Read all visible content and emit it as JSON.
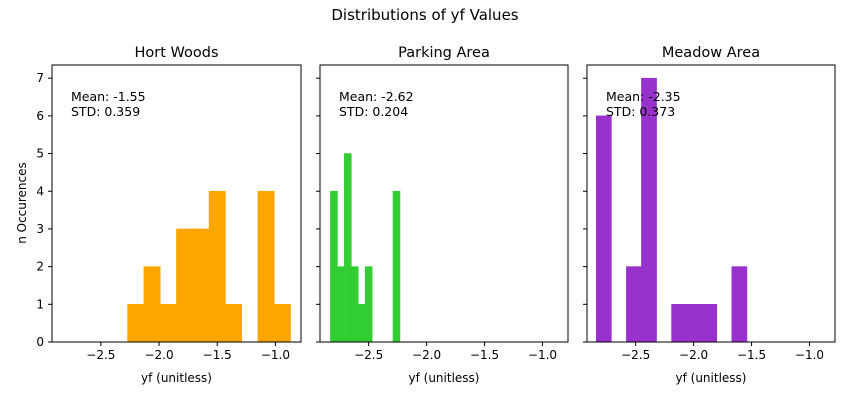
{
  "figure": {
    "title": "Distributions of yf Values",
    "ylabel": "n Occurences"
  },
  "chart_data": [
    {
      "type": "bar",
      "title": "Hort Woods",
      "xlabel": "yf (unitless)",
      "xlim": [
        -2.92,
        -0.78
      ],
      "ylim": [
        0,
        7.35
      ],
      "xticks": [
        -2.5,
        -2.0,
        -1.5,
        -1.0
      ],
      "xtick_labels": [
        "−2.5",
        "−2.0",
        "−1.5",
        "−1.0"
      ],
      "yticks": [
        0,
        1,
        2,
        3,
        4,
        5,
        6,
        7
      ],
      "ytick_labels": [
        "0",
        "1",
        "2",
        "3",
        "4",
        "5",
        "6",
        "7"
      ],
      "color": "#ffa500",
      "annotation": {
        "mean_text": "Mean: -1.55",
        "std_text": "STD: 0.359"
      },
      "bins": [
        {
          "x0": -2.27,
          "x1": -2.13,
          "count": 1
        },
        {
          "x0": -2.13,
          "x1": -1.99,
          "count": 2
        },
        {
          "x0": -1.99,
          "x1": -1.85,
          "count": 1
        },
        {
          "x0": -1.85,
          "x1": -1.71,
          "count": 3
        },
        {
          "x0": -1.71,
          "x1": -1.57,
          "count": 3
        },
        {
          "x0": -1.57,
          "x1": -1.43,
          "count": 4
        },
        {
          "x0": -1.43,
          "x1": -1.29,
          "count": 1
        },
        {
          "x0": -1.15,
          "x1": -1.01,
          "count": 4
        },
        {
          "x0": -1.01,
          "x1": -0.87,
          "count": 1
        }
      ]
    },
    {
      "type": "bar",
      "title": "Parking Area",
      "xlabel": "yf (unitless)",
      "xlim": [
        -2.92,
        -0.78
      ],
      "ylim": [
        0,
        7.35
      ],
      "xticks": [
        -2.5,
        -2.0,
        -1.5,
        -1.0
      ],
      "xtick_labels": [
        "−2.5",
        "−2.0",
        "−1.5",
        "−1.0"
      ],
      "yticks": [
        0,
        1,
        2,
        3,
        4,
        5,
        6,
        7
      ],
      "color": "#32cd32",
      "annotation": {
        "mean_text": "Mean: -2.62",
        "std_text": "STD: 0.204"
      },
      "bins": [
        {
          "x0": -2.83,
          "x1": -2.77,
          "count": 4
        },
        {
          "x0": -2.77,
          "x1": -2.71,
          "count": 2
        },
        {
          "x0": -2.71,
          "x1": -2.65,
          "count": 5
        },
        {
          "x0": -2.65,
          "x1": -2.59,
          "count": 2
        },
        {
          "x0": -2.59,
          "x1": -2.53,
          "count": 1
        },
        {
          "x0": -2.53,
          "x1": -2.47,
          "count": 2
        },
        {
          "x0": -2.29,
          "x1": -2.23,
          "count": 4
        }
      ]
    },
    {
      "type": "bar",
      "title": "Meadow Area",
      "xlabel": "yf (unitless)",
      "xlim": [
        -2.92,
        -0.78
      ],
      "ylim": [
        0,
        7.35
      ],
      "xticks": [
        -2.5,
        -2.0,
        -1.5,
        -1.0
      ],
      "xtick_labels": [
        "−2.5",
        "−2.0",
        "−1.5",
        "−1.0"
      ],
      "yticks": [
        0,
        1,
        2,
        3,
        4,
        5,
        6,
        7
      ],
      "color": "#9932cc",
      "annotation": {
        "mean_text": "Mean: -2.35",
        "std_text": "STD: 0.373"
      },
      "bins": [
        {
          "x0": -2.84,
          "x1": -2.71,
          "count": 6
        },
        {
          "x0": -2.58,
          "x1": -2.45,
          "count": 2
        },
        {
          "x0": -2.45,
          "x1": -2.32,
          "count": 7
        },
        {
          "x0": -2.19,
          "x1": -2.06,
          "count": 1
        },
        {
          "x0": -2.06,
          "x1": -1.93,
          "count": 1
        },
        {
          "x0": -1.93,
          "x1": -1.8,
          "count": 1
        },
        {
          "x0": -1.67,
          "x1": -1.54,
          "count": 2
        }
      ]
    }
  ]
}
